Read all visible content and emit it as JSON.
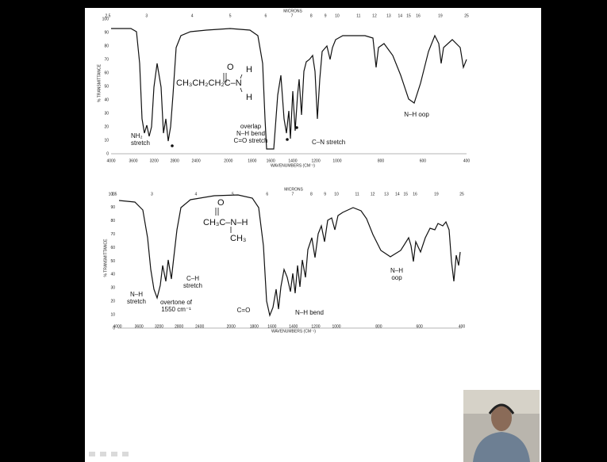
{
  "spectra": [
    {
      "microns_label": "MICRONS",
      "microns": [
        2.5,
        3,
        4,
        5,
        6,
        7,
        8,
        9,
        10,
        11,
        12,
        13,
        14,
        15,
        16,
        19,
        25
      ],
      "wavenumbers": [
        4000,
        3600,
        3200,
        2800,
        2400,
        2000,
        1800,
        1600,
        1400,
        1200,
        1000,
        800,
        600,
        400
      ],
      "wavenumbers_label": "WAVENUMBERS (CM⁻¹)",
      "transmittance_label": "% TRANSMITTANCE",
      "transmittance_ticks": [
        100,
        90,
        80,
        70,
        60,
        50,
        40,
        30,
        20,
        10,
        0
      ],
      "molecule": [
        "O",
        "CH₃CH₂CH₂C–N",
        "H",
        "H"
      ],
      "annotations": [
        {
          "lines": [
            "NH₂",
            "stretch"
          ]
        },
        {
          "lines": [
            "overlap",
            "N–H bend",
            "C=O stretch"
          ]
        },
        {
          "lines": [
            "C–N stretch"
          ]
        },
        {
          "lines": [
            "N–H oop"
          ]
        }
      ]
    },
    {
      "microns_label": "MICRONS",
      "microns": [
        2.5,
        3,
        4,
        5,
        6,
        7,
        8,
        9,
        10,
        11,
        12,
        13,
        14,
        15,
        16,
        19,
        25
      ],
      "wavenumbers": [
        4000,
        3600,
        3200,
        2800,
        2400,
        2000,
        1800,
        1600,
        1400,
        1200,
        1000,
        800,
        600,
        400
      ],
      "wavenumbers_label": "WAVENUMBERS (CM⁻¹)",
      "transmittance_label": "% TRANSMITTANCE",
      "transmittance_ticks": [
        100,
        90,
        80,
        70,
        60,
        50,
        40,
        30,
        20,
        10,
        0
      ],
      "molecule": [
        "O",
        "CH₃C–N–H",
        "CH₃"
      ],
      "annotations": [
        {
          "lines": [
            "N–H",
            "stretch"
          ]
        },
        {
          "lines": [
            "overtone of",
            "1550 cm⁻¹"
          ]
        },
        {
          "lines": [
            "C–H",
            "stretch"
          ]
        },
        {
          "lines": [
            "C=O"
          ]
        },
        {
          "lines": [
            "N–H bend"
          ]
        },
        {
          "lines": [
            "N–H",
            "oop"
          ]
        }
      ]
    }
  ]
}
